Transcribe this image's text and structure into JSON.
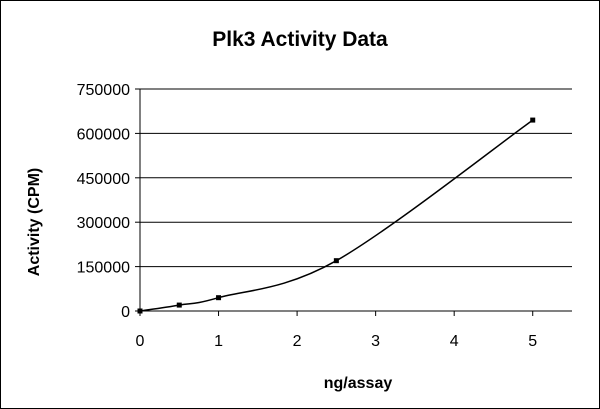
{
  "chart_data": {
    "type": "line",
    "title": "Plk3 Activity Data",
    "xlabel": "ng/assay",
    "ylabel": "Activity (CPM)",
    "x": [
      0,
      0.5,
      1,
      2.5,
      5
    ],
    "series": [
      {
        "values": [
          0,
          20000,
          45000,
          170000,
          645000
        ]
      }
    ],
    "xlim": [
      0,
      5.5
    ],
    "ylim": [
      0,
      750000
    ],
    "xticks": [
      "0",
      "1",
      "2",
      "3",
      "4",
      "5"
    ],
    "yticks": [
      "0",
      "150000",
      "300000",
      "450000",
      "600000",
      "750000"
    ],
    "grid": "horizontal",
    "legend": "none",
    "colors": {
      "line": "#000000",
      "grid": "#000000",
      "background": "#ffffff"
    }
  }
}
